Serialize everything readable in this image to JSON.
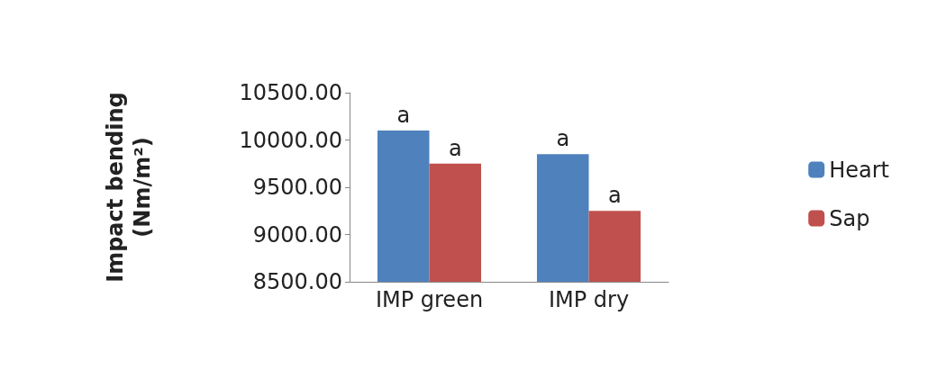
{
  "chart_data": {
    "type": "bar",
    "ylabel": "Impact bending (Nm/m²)",
    "categories": [
      "IMP green",
      "IMP dry"
    ],
    "series": [
      {
        "name": "Heart",
        "color": "#4f81bd",
        "values": [
          10100,
          9850
        ],
        "value_labels": [
          "a",
          "a"
        ]
      },
      {
        "name": "Sap",
        "color": "#c0504d",
        "values": [
          9750,
          9250
        ],
        "value_labels": [
          "a",
          "a"
        ]
      }
    ],
    "ylim": [
      8500,
      10500
    ],
    "yticks": [
      {
        "value": 8500,
        "label": "8500.00"
      },
      {
        "value": 9000,
        "label": "9000.00"
      },
      {
        "value": 9500,
        "label": "9500.00"
      },
      {
        "value": 10000,
        "label": "10000.00"
      },
      {
        "value": 10500,
        "label": "10500.00"
      }
    ],
    "grid": false,
    "legend": "right"
  }
}
